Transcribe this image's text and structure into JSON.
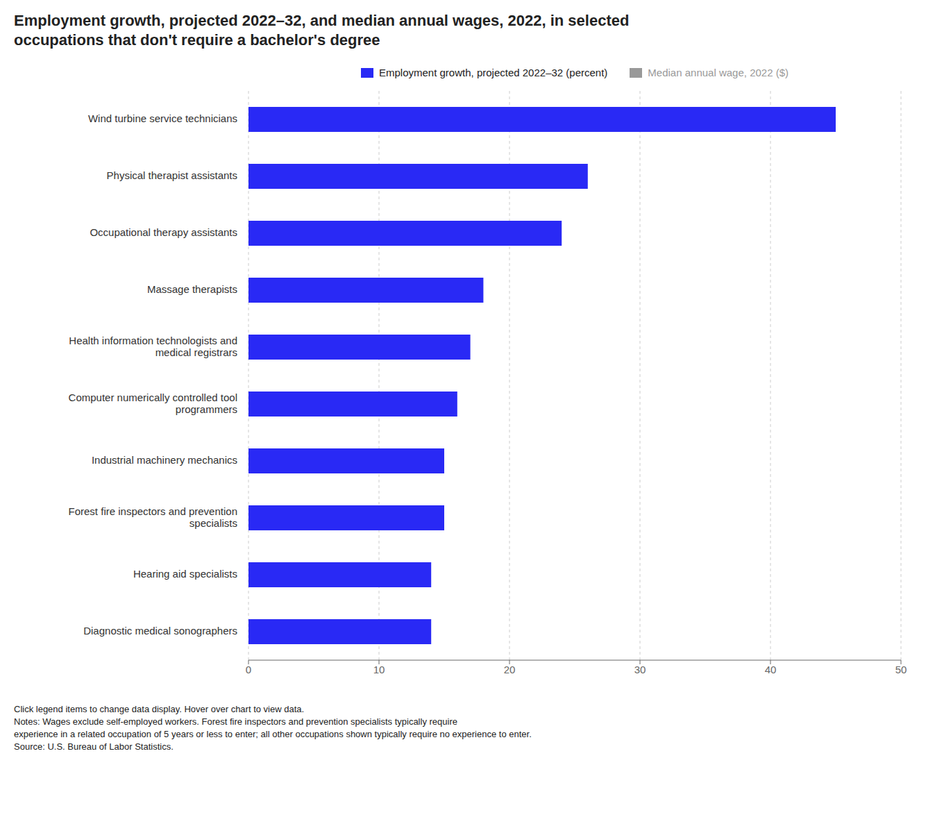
{
  "chart_data": {
    "type": "bar",
    "orientation": "horizontal",
    "title": "Employment growth, projected 2022–32, and median annual wages, 2022, in selected\noccupations that don't require a bachelor's degree",
    "categories": [
      "Wind turbine service technicians",
      "Physical therapist assistants",
      "Occupational therapy assistants",
      "Massage therapists",
      "Health information technologists and\nmedical registrars",
      "Computer numerically controlled tool\nprogrammers",
      "Industrial machinery mechanics",
      "Forest fire inspectors and prevention\nspecialists",
      "Hearing aid specialists",
      "Diagnostic medical sonographers"
    ],
    "series": [
      {
        "name": "Employment growth, projected 2022–32 (percent)",
        "color": "#2929f5",
        "values": [
          45,
          26,
          24,
          18,
          17,
          16,
          15,
          15,
          14,
          14
        ]
      },
      {
        "name": "Median annual wage, 2022 ($)",
        "color": "#999999",
        "values": [
          null,
          null,
          null,
          null,
          null,
          null,
          null,
          null,
          null,
          null
        ]
      }
    ],
    "xlim": [
      0,
      50
    ],
    "xticks": [
      0,
      10,
      20,
      30,
      40,
      50
    ],
    "grid": true,
    "note": "Click legend items to change data display. Hover over chart to view data.\nNotes: Wages exclude self-employed workers. Forest fire inspectors and prevention specialists typically require\nexperience in a related occupation of 5 years or less to enter; all other occupations shown typically require no experience to enter.\nSource: U.S. Bureau of Labor Statistics."
  }
}
